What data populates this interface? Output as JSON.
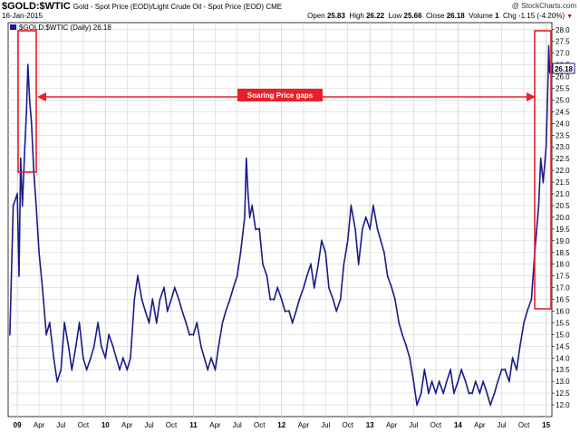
{
  "header": {
    "symbol": "$GOLD:$WTIC",
    "description": "Gold - Spot Price (EOD)/Light Crude Oil - Spot Price (EOD)  CME",
    "date": "16-Jan-2015",
    "credit": "@ StockCharts.com",
    "open_label": "Open",
    "open": "25.83",
    "high_label": "High",
    "high": "26.22",
    "low_label": "Low",
    "low": "25.66",
    "close_label": "Close",
    "close": "26.18",
    "volume_label": "Volume",
    "volume": "1",
    "chg_label": "Chg",
    "chg": "-1.15 (-4.20%)"
  },
  "legend": {
    "text": "$GOLD:$WTIC (Daily) 26.18"
  },
  "annotation": {
    "text": "Soaring Price gaps"
  },
  "colors": {
    "series": "#1a1a8a",
    "annotation": "#e8202a",
    "grid": "#d4d4d4",
    "last_box": "#1a1a8a"
  },
  "chart_data": {
    "type": "line",
    "title": "$GOLD:$WTIC",
    "xlabel": "",
    "ylabel": "",
    "ylim": [
      11.5,
      28.3
    ],
    "y_ticks": [
      "28.0",
      "27.5",
      "27.0",
      "26.5",
      "26.0",
      "25.5",
      "25.0",
      "24.5",
      "24.0",
      "23.5",
      "23.0",
      "22.5",
      "22.0",
      "21.5",
      "21.0",
      "20.5",
      "20.0",
      "19.5",
      "19.0",
      "18.5",
      "18.0",
      "17.5",
      "17.0",
      "16.5",
      "16.0",
      "15.5",
      "15.0",
      "14.5",
      "14.0",
      "13.5",
      "13.0",
      "12.5",
      "12.0"
    ],
    "x_ticks": [
      "09",
      "Apr",
      "Jul",
      "Oct",
      "10",
      "Apr",
      "Jul",
      "Oct",
      "11",
      "Apr",
      "Jul",
      "Oct",
      "12",
      "Apr",
      "Jul",
      "Oct",
      "13",
      "Apr",
      "Jul",
      "Oct",
      "14",
      "Apr",
      "Jul",
      "Oct",
      "15"
    ],
    "last_value": "26.18",
    "grid": true,
    "legend_position": "top-left",
    "series": [
      {
        "name": "$GOLD:$WTIC",
        "points": [
          [
            "2008-12-01",
            15.0
          ],
          [
            "2008-12-15",
            20.5
          ],
          [
            "2009-01-01",
            21.0
          ],
          [
            "2009-01-08",
            17.5
          ],
          [
            "2009-01-15",
            22.5
          ],
          [
            "2009-01-22",
            20.5
          ],
          [
            "2009-02-01",
            23.0
          ],
          [
            "2009-02-08",
            24.5
          ],
          [
            "2009-02-14",
            26.5
          ],
          [
            "2009-02-21",
            25.0
          ],
          [
            "2009-03-01",
            24.0
          ],
          [
            "2009-03-10",
            22.0
          ],
          [
            "2009-03-20",
            20.5
          ],
          [
            "2009-04-01",
            18.5
          ],
          [
            "2009-04-15",
            17.0
          ],
          [
            "2009-05-01",
            15.0
          ],
          [
            "2009-05-15",
            15.5
          ],
          [
            "2009-06-01",
            14.0
          ],
          [
            "2009-06-15",
            13.0
          ],
          [
            "2009-07-01",
            13.5
          ],
          [
            "2009-07-15",
            15.5
          ],
          [
            "2009-08-01",
            14.5
          ],
          [
            "2009-08-15",
            13.5
          ],
          [
            "2009-09-01",
            14.5
          ],
          [
            "2009-09-15",
            15.5
          ],
          [
            "2009-10-01",
            14.0
          ],
          [
            "2009-10-15",
            13.5
          ],
          [
            "2009-11-01",
            14.0
          ],
          [
            "2009-11-15",
            14.5
          ],
          [
            "2009-12-01",
            15.5
          ],
          [
            "2009-12-15",
            14.5
          ],
          [
            "2010-01-01",
            14.0
          ],
          [
            "2010-01-15",
            15.0
          ],
          [
            "2010-02-01",
            14.5
          ],
          [
            "2010-02-15",
            14.0
          ],
          [
            "2010-03-01",
            13.5
          ],
          [
            "2010-03-15",
            14.0
          ],
          [
            "2010-04-01",
            13.5
          ],
          [
            "2010-04-15",
            14.0
          ],
          [
            "2010-05-01",
            16.5
          ],
          [
            "2010-05-15",
            17.5
          ],
          [
            "2010-06-01",
            16.5
          ],
          [
            "2010-06-15",
            16.0
          ],
          [
            "2010-07-01",
            15.5
          ],
          [
            "2010-07-15",
            16.5
          ],
          [
            "2010-08-01",
            15.5
          ],
          [
            "2010-08-15",
            16.5
          ],
          [
            "2010-09-01",
            17.0
          ],
          [
            "2010-09-15",
            16.0
          ],
          [
            "2010-10-01",
            16.5
          ],
          [
            "2010-10-15",
            17.0
          ],
          [
            "2010-11-01",
            16.5
          ],
          [
            "2010-11-15",
            16.0
          ],
          [
            "2010-12-01",
            15.5
          ],
          [
            "2010-12-15",
            15.0
          ],
          [
            "2011-01-01",
            15.0
          ],
          [
            "2011-01-15",
            15.5
          ],
          [
            "2011-02-01",
            14.5
          ],
          [
            "2011-02-15",
            14.0
          ],
          [
            "2011-03-01",
            13.5
          ],
          [
            "2011-03-15",
            14.0
          ],
          [
            "2011-04-01",
            13.5
          ],
          [
            "2011-04-15",
            14.5
          ],
          [
            "2011-05-01",
            15.5
          ],
          [
            "2011-05-15",
            16.0
          ],
          [
            "2011-06-01",
            16.5
          ],
          [
            "2011-06-15",
            17.0
          ],
          [
            "2011-07-01",
            17.5
          ],
          [
            "2011-07-15",
            18.5
          ],
          [
            "2011-08-01",
            20.0
          ],
          [
            "2011-08-08",
            22.5
          ],
          [
            "2011-08-15",
            21.0
          ],
          [
            "2011-08-22",
            20.0
          ],
          [
            "2011-09-01",
            20.5
          ],
          [
            "2011-09-15",
            19.5
          ],
          [
            "2011-10-01",
            19.5
          ],
          [
            "2011-10-15",
            18.0
          ],
          [
            "2011-11-01",
            17.5
          ],
          [
            "2011-11-15",
            16.5
          ],
          [
            "2011-12-01",
            16.5
          ],
          [
            "2011-12-15",
            17.0
          ],
          [
            "2012-01-01",
            16.5
          ],
          [
            "2012-01-15",
            16.0
          ],
          [
            "2012-02-01",
            16.0
          ],
          [
            "2012-02-15",
            15.5
          ],
          [
            "2012-03-01",
            16.0
          ],
          [
            "2012-03-15",
            16.5
          ],
          [
            "2012-04-01",
            17.0
          ],
          [
            "2012-04-15",
            17.5
          ],
          [
            "2012-05-01",
            18.0
          ],
          [
            "2012-05-15",
            17.0
          ],
          [
            "2012-06-01",
            18.0
          ],
          [
            "2012-06-15",
            19.0
          ],
          [
            "2012-07-01",
            18.5
          ],
          [
            "2012-07-15",
            17.0
          ],
          [
            "2012-08-01",
            16.5
          ],
          [
            "2012-08-15",
            16.0
          ],
          [
            "2012-09-01",
            16.5
          ],
          [
            "2012-09-15",
            18.0
          ],
          [
            "2012-10-01",
            19.0
          ],
          [
            "2012-10-15",
            20.5
          ],
          [
            "2012-11-01",
            19.5
          ],
          [
            "2012-11-15",
            18.0
          ],
          [
            "2012-12-01",
            19.5
          ],
          [
            "2012-12-15",
            20.0
          ],
          [
            "2013-01-01",
            19.5
          ],
          [
            "2013-01-15",
            20.5
          ],
          [
            "2013-02-01",
            19.5
          ],
          [
            "2013-02-15",
            19.0
          ],
          [
            "2013-03-01",
            18.5
          ],
          [
            "2013-03-15",
            17.5
          ],
          [
            "2013-04-01",
            17.0
          ],
          [
            "2013-04-15",
            16.5
          ],
          [
            "2013-05-01",
            15.5
          ],
          [
            "2013-05-15",
            15.0
          ],
          [
            "2013-06-01",
            14.5
          ],
          [
            "2013-06-15",
            14.0
          ],
          [
            "2013-07-01",
            13.0
          ],
          [
            "2013-07-15",
            12.0
          ],
          [
            "2013-08-01",
            12.5
          ],
          [
            "2013-08-15",
            13.5
          ],
          [
            "2013-09-01",
            12.5
          ],
          [
            "2013-09-15",
            13.0
          ],
          [
            "2013-10-01",
            12.5
          ],
          [
            "2013-10-15",
            13.0
          ],
          [
            "2013-11-01",
            12.5
          ],
          [
            "2013-11-15",
            13.0
          ],
          [
            "2013-12-01",
            13.5
          ],
          [
            "2013-12-15",
            12.5
          ],
          [
            "2014-01-01",
            13.0
          ],
          [
            "2014-01-15",
            13.5
          ],
          [
            "2014-02-01",
            13.0
          ],
          [
            "2014-02-15",
            12.5
          ],
          [
            "2014-03-01",
            12.5
          ],
          [
            "2014-03-15",
            13.0
          ],
          [
            "2014-04-01",
            12.5
          ],
          [
            "2014-04-15",
            13.0
          ],
          [
            "2014-05-01",
            12.5
          ],
          [
            "2014-05-15",
            12.0
          ],
          [
            "2014-06-01",
            12.5
          ],
          [
            "2014-06-15",
            13.0
          ],
          [
            "2014-07-01",
            13.5
          ],
          [
            "2014-07-15",
            13.5
          ],
          [
            "2014-08-01",
            13.0
          ],
          [
            "2014-08-15",
            14.0
          ],
          [
            "2014-09-01",
            13.5
          ],
          [
            "2014-09-15",
            14.5
          ],
          [
            "2014-10-01",
            15.5
          ],
          [
            "2014-10-15",
            16.0
          ],
          [
            "2014-11-01",
            16.5
          ],
          [
            "2014-11-15",
            18.5
          ],
          [
            "2014-12-01",
            20.5
          ],
          [
            "2014-12-10",
            22.5
          ],
          [
            "2014-12-20",
            21.5
          ],
          [
            "2015-01-01",
            23.0
          ],
          [
            "2015-01-08",
            25.5
          ],
          [
            "2015-01-12",
            27.3
          ],
          [
            "2015-01-16",
            26.18
          ]
        ]
      }
    ]
  }
}
